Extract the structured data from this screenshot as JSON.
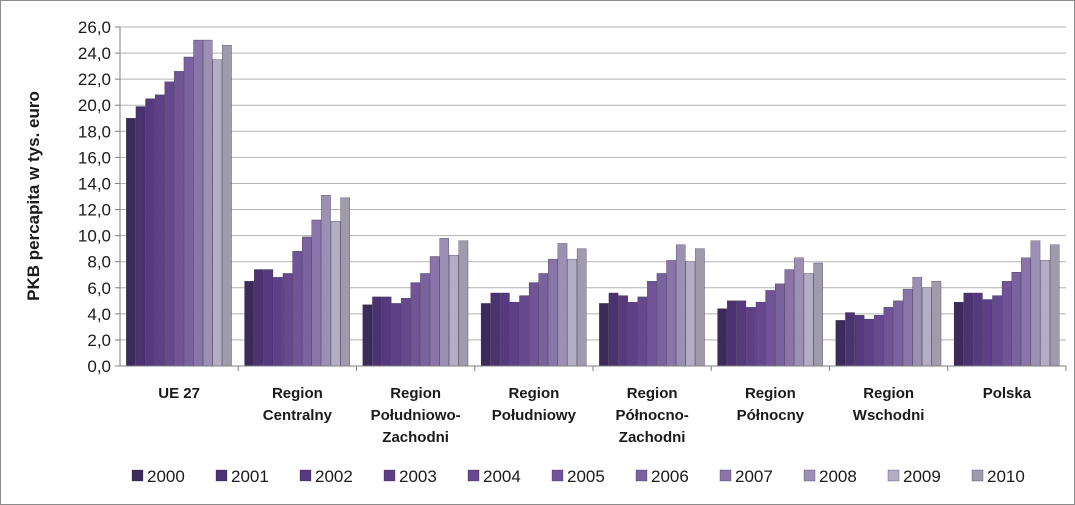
{
  "chart_data": {
    "type": "bar",
    "ylabel": "PKB percapita w tys. euro",
    "xlabel": "",
    "ylim": [
      0,
      26
    ],
    "y_ticks": [
      "0,0",
      "2,0",
      "4,0",
      "6,0",
      "8,0",
      "10,0",
      "12,0",
      "14,0",
      "16,0",
      "18,0",
      "20,0",
      "22,0",
      "24,0",
      "26,0"
    ],
    "grid": true,
    "legend_position": "bottom",
    "categories": [
      [
        "UE 27"
      ],
      [
        "Region",
        "Centralny"
      ],
      [
        "Region",
        "Południowo-",
        "Zachodni"
      ],
      [
        "Region",
        "Południowy"
      ],
      [
        "Region",
        "Północno-",
        "Zachodni"
      ],
      [
        "Region",
        "Północny"
      ],
      [
        "Region",
        "Wschodni"
      ],
      [
        "Polska"
      ]
    ],
    "series": [
      {
        "name": "2000",
        "color": "#3b2a5a",
        "values": [
          19.0,
          6.5,
          4.7,
          4.8,
          4.8,
          4.4,
          3.5,
          4.9
        ]
      },
      {
        "name": "2001",
        "color": "#4a3370",
        "values": [
          19.9,
          7.4,
          5.3,
          5.6,
          5.6,
          5.0,
          4.1,
          5.6
        ]
      },
      {
        "name": "2002",
        "color": "#553a80",
        "values": [
          20.5,
          7.4,
          5.3,
          5.6,
          5.4,
          5.0,
          3.9,
          5.6
        ]
      },
      {
        "name": "2003",
        "color": "#5d4088",
        "values": [
          20.8,
          6.8,
          4.8,
          4.9,
          4.9,
          4.5,
          3.6,
          5.1
        ]
      },
      {
        "name": "2004",
        "color": "#66488f",
        "values": [
          21.8,
          7.1,
          5.2,
          5.4,
          5.3,
          4.9,
          3.9,
          5.4
        ]
      },
      {
        "name": "2005",
        "color": "#705497",
        "values": [
          22.6,
          8.8,
          6.4,
          6.4,
          6.5,
          5.8,
          4.5,
          6.5
        ]
      },
      {
        "name": "2006",
        "color": "#7a629f",
        "values": [
          23.7,
          9.9,
          7.1,
          7.1,
          7.1,
          6.3,
          5.0,
          7.2
        ]
      },
      {
        "name": "2007",
        "color": "#8975a9",
        "values": [
          25.0,
          11.2,
          8.4,
          8.2,
          8.1,
          7.4,
          5.9,
          8.3
        ]
      },
      {
        "name": "2008",
        "color": "#9c8fb4",
        "values": [
          25.0,
          13.1,
          9.8,
          9.4,
          9.3,
          8.3,
          6.8,
          9.6
        ]
      },
      {
        "name": "2009",
        "color": "#b4aec4",
        "values": [
          23.5,
          11.1,
          8.5,
          8.2,
          8.0,
          7.1,
          6.0,
          8.1
        ]
      },
      {
        "name": "2010",
        "color": "#a09aad",
        "values": [
          24.6,
          12.9,
          9.6,
          9.0,
          9.0,
          7.9,
          6.5,
          9.3
        ]
      }
    ]
  }
}
